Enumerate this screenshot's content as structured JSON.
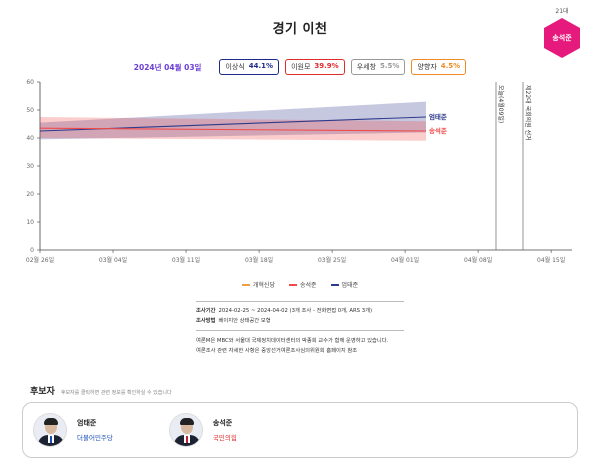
{
  "header": {
    "title": "경기 이천",
    "district_number": "21대",
    "incumbent_badge": "송석준",
    "incumbent_color": "#e6197d"
  },
  "poll_summary": {
    "date": "2024년 04월 03일",
    "chips": [
      {
        "name": "이상식",
        "pct": "44.1%",
        "color": "#1d2a8a"
      },
      {
        "name": "이원모",
        "pct": "39.9%",
        "color": "#e02b2b"
      },
      {
        "name": "우세창",
        "pct": "5.5%",
        "color": "#999999"
      },
      {
        "name": "양향자",
        "pct": "4.5%",
        "color": "#f08a24"
      }
    ]
  },
  "chart_data": {
    "type": "line",
    "title": "경기 이천",
    "xlabel": "",
    "ylabel": "",
    "ylim": [
      0,
      60
    ],
    "yticks": [
      0,
      10,
      20,
      30,
      40,
      50,
      60
    ],
    "xticks": [
      "02월 26일",
      "03월 04일",
      "03월 11일",
      "03월 18일",
      "03월 25일",
      "04월 01일",
      "04월 08일",
      "04월 15일"
    ],
    "x_range": [
      "2024-02-26",
      "2024-04-17"
    ],
    "grid": false,
    "legend_position": "bottom",
    "series": [
      {
        "name": "엄태준",
        "color": "#2e3a8c",
        "x": [
          "2024-02-26",
          "2024-04-03"
        ],
        "values": [
          42.5,
          47.5
        ],
        "band_low": [
          39.5,
          42.0
        ],
        "band_high": [
          45.5,
          53.0
        ],
        "end_label": "엄태준"
      },
      {
        "name": "송석준",
        "color": "#f04a4a",
        "x": [
          "2024-02-26",
          "2024-04-03"
        ],
        "values": [
          43.5,
          42.5
        ],
        "band_low": [
          40.0,
          39.0
        ],
        "band_high": [
          47.5,
          46.0
        ],
        "end_label": "송석준"
      },
      {
        "name": "개혁신당",
        "color": "#f0a040",
        "x": [],
        "values": []
      }
    ],
    "annotations": [
      {
        "x": "2024-04-10",
        "label": "오늘(4월09일)"
      },
      {
        "x": "2024-04-10",
        "label": "제22대 국회의원 선거"
      }
    ]
  },
  "legend": [
    {
      "label": "개혁신당",
      "color": "#f0a040"
    },
    {
      "label": "송석준",
      "color": "#f04a4a"
    },
    {
      "label": "엄태준",
      "color": "#2e3a8c"
    }
  ],
  "info": {
    "period_label": "조사기간",
    "period_value": "2024-02-25 ~ 2024-04-02 (3개 조사 - 전화면접 0개, ARS 3개)",
    "method_label": "조사방법",
    "method_value": "베이지안 상태공간 모형",
    "note1": "여론M은 MBC와 서울대 국제정치데이터센터의 박종희 교수가 함께 운영하고 있습니다.",
    "note2": "여론조사 관련 자세한 사항은 중앙선거여론조사심의위원회 홈페이지 참조"
  },
  "candidates": {
    "title": "후보자",
    "hint": "후보자를 클릭하면 관련 정보를 확인하실 수 있습니다",
    "items": [
      {
        "name": "엄태준",
        "party": "더불어민주당",
        "party_color": "#1d4eb5"
      },
      {
        "name": "송석준",
        "party": "국민의힘",
        "party_color": "#e02b2b"
      }
    ]
  }
}
